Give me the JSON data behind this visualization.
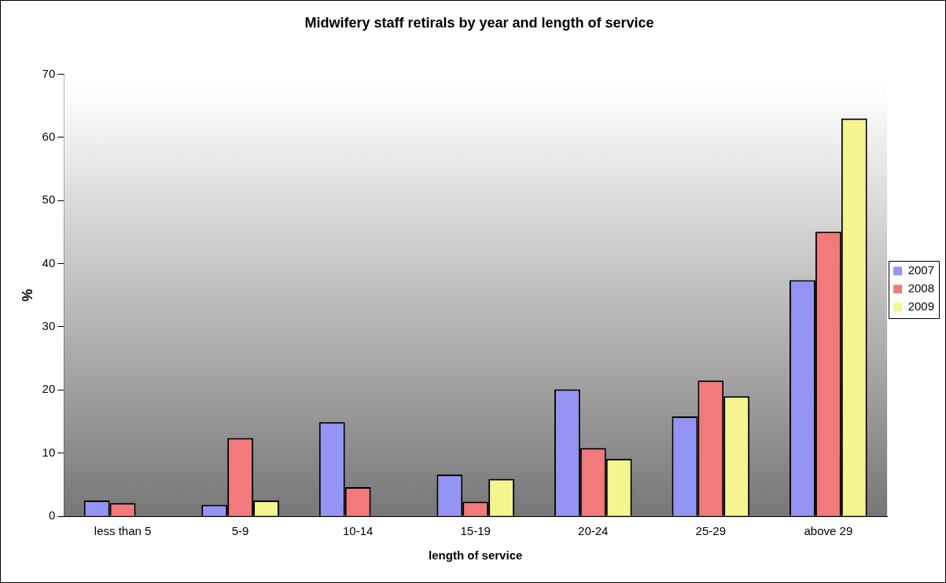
{
  "chart_data": {
    "type": "bar",
    "title": "Midwifery staff retirals by year and length of service",
    "xlabel": "length of service",
    "ylabel": "%",
    "categories": [
      "less than 5",
      "5-9",
      "10-14",
      "15-19",
      "20-24",
      "25-29",
      "above 29"
    ],
    "series": [
      {
        "name": "2007",
        "color": "#9494f5",
        "values": [
          2.5,
          1.8,
          14.9,
          6.6,
          20.1,
          15.8,
          37.4
        ]
      },
      {
        "name": "2008",
        "color": "#f27a7a",
        "values": [
          2.1,
          12.4,
          4.6,
          2.3,
          10.8,
          21.5,
          45.1
        ]
      },
      {
        "name": "2009",
        "color": "#f5f590",
        "values": [
          null,
          2.5,
          null,
          5.9,
          9.1,
          19.0,
          63.0
        ]
      }
    ],
    "ylim": [
      0,
      70
    ],
    "yticks": [
      0,
      10,
      20,
      30,
      40,
      50,
      60,
      70
    ],
    "grid": false,
    "legend": "right"
  }
}
